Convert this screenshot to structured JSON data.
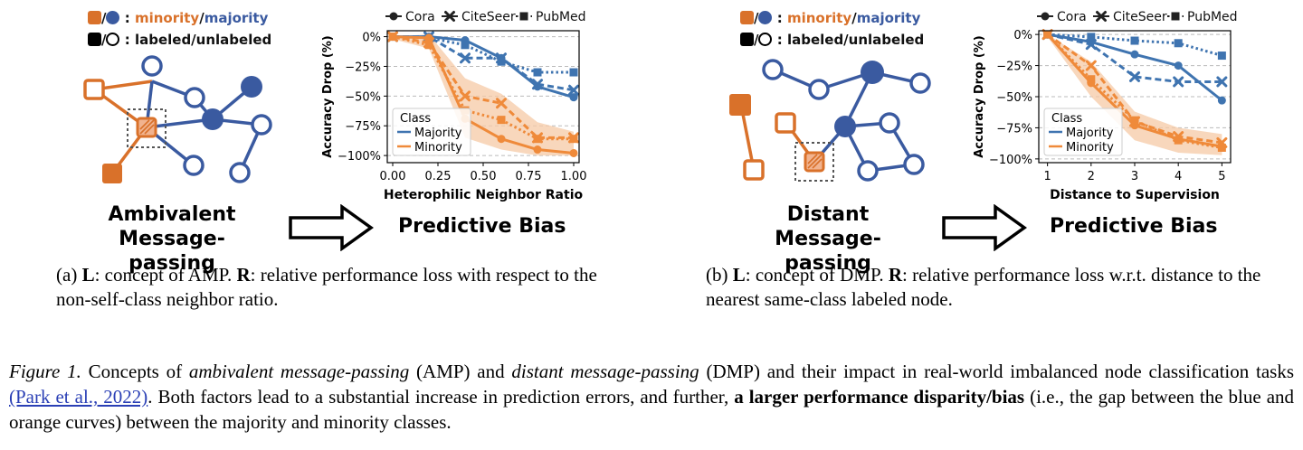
{
  "palette": {
    "orange": "#d9712a",
    "blue": "#3a5aa0",
    "majority_line": "#3f74b0",
    "minority_line": "#ef8a3a",
    "band": "#f6c9a6"
  },
  "left": {
    "legend": {
      "sep": "/",
      "colon": ":",
      "minority": "minority",
      "slash": "/",
      "majority": "majority",
      "labeled_unlabeled": "labeled/unlabeled"
    },
    "concept_title": [
      "Ambivalent",
      "Message-passing"
    ],
    "arrow_target": "Predictive Bias",
    "subcaption": {
      "prefix": "(a) ",
      "L": "L",
      ":": ":",
      "l_text": " concept of AMP. ",
      "R": "R",
      "r_text": ": relative performance loss with respect to the non-self-class neighbor ratio."
    }
  },
  "right": {
    "legend": {
      "sep": "/",
      "colon": ":",
      "minority": "minority",
      "slash": "/",
      "majority": "majority",
      "labeled_unlabeled": "labeled/unlabeled"
    },
    "concept_title": [
      "Distant",
      "Message-passing"
    ],
    "arrow_target": "Predictive Bias",
    "subcaption": {
      "prefix": "(b) ",
      "L": "L",
      "l_text": ": concept of DMP. ",
      "R": "R",
      "r_text": ": relative performance loss w.r.t. distance to the nearest same-class labeled node."
    }
  },
  "caption": {
    "label": "Figure 1.",
    "t1": " Concepts of ",
    "amp": "ambivalent message-passing",
    "t2": " (AMP) and ",
    "dmp": "distant message-passing",
    "t3": " (DMP) and their impact in real-world imbalanced node classification tasks ",
    "cite": "(Park et al., 2022)",
    "t4": ". Both factors lead to a substantial increase in prediction errors, and further, ",
    "bold": "a larger performance disparity/bias",
    "t5": " (i.e., the gap between the blue and orange curves) between the majority and minority classes."
  },
  "chart_data": [
    {
      "type": "line",
      "title": "",
      "xlabel": "Heterophilic Neighbor Ratio",
      "ylabel": "Accuracy Drop (%)",
      "xlim": [
        -0.03,
        1.03
      ],
      "ylim": [
        -106,
        5
      ],
      "xticks": [
        0.0,
        0.25,
        0.5,
        0.75,
        1.0
      ],
      "xtick_labels": [
        "0.00",
        "0.25",
        "0.50",
        "0.75",
        "1.00"
      ],
      "yticks": [
        0,
        -25,
        -50,
        -75,
        -100
      ],
      "ytick_labels": [
        "0%",
        "−25%",
        "−50%",
        "−75%",
        "−100%"
      ],
      "grid": "horizontal-dashed",
      "top_legend": [
        "Cora",
        "CiteSeer",
        "PubMed"
      ],
      "class_legend": {
        "title": "Class",
        "items": [
          "Majority",
          "Minority"
        ],
        "placement": "lower-left"
      },
      "x": [
        0.0,
        0.2,
        0.4,
        0.6,
        0.8,
        1.0
      ],
      "band": {
        "x": [
          0.0,
          0.2,
          0.4,
          0.6,
          0.8,
          1.0
        ],
        "upper": [
          0,
          2,
          -35,
          -48,
          -72,
          -80
        ],
        "lower": [
          -2,
          -10,
          -85,
          -95,
          -100,
          -100
        ]
      },
      "series": [
        {
          "name": "Cora",
          "class": "Majority",
          "marker": "circle",
          "dash": "solid",
          "values": [
            0,
            0,
            -3,
            -18,
            -42,
            -51
          ]
        },
        {
          "name": "CiteSeer",
          "class": "Majority",
          "marker": "x",
          "dash": "dashed",
          "values": [
            0,
            0,
            -18,
            -18,
            -40,
            -45
          ]
        },
        {
          "name": "PubMed",
          "class": "Majority",
          "marker": "square",
          "dash": "dotted",
          "values": [
            0,
            -1,
            -7,
            -21,
            -30,
            -30
          ]
        },
        {
          "name": "Cora",
          "class": "Minority",
          "marker": "circle",
          "dash": "solid",
          "values": [
            0,
            -1,
            -69,
            -86,
            -95,
            -98
          ]
        },
        {
          "name": "CiteSeer",
          "class": "Minority",
          "marker": "x",
          "dash": "dashed",
          "values": [
            0,
            -5,
            -50,
            -56,
            -85,
            -85
          ]
        },
        {
          "name": "PubMed",
          "class": "Minority",
          "marker": "square",
          "dash": "dotted",
          "values": [
            0,
            -7,
            -62,
            -70,
            -86,
            -86
          ]
        }
      ]
    },
    {
      "type": "line",
      "title": "",
      "xlabel": "Distance to Supervision",
      "ylabel": "Accuracy Drop (%)",
      "xlim": [
        0.8,
        5.2
      ],
      "ylim": [
        -103,
        3
      ],
      "xticks": [
        1,
        2,
        3,
        4,
        5
      ],
      "xtick_labels": [
        "1",
        "2",
        "3",
        "4",
        "5"
      ],
      "yticks": [
        0,
        -25,
        -50,
        -75,
        -100
      ],
      "ytick_labels": [
        "0%",
        "−25%",
        "−50%",
        "−75%",
        "−100%"
      ],
      "grid": "horizontal-dashed",
      "top_legend": [
        "Cora",
        "CiteSeer",
        "PubMed"
      ],
      "class_legend": {
        "title": "Class",
        "items": [
          "Majority",
          "Minority"
        ],
        "placement": "lower-left"
      },
      "x": [
        1,
        2,
        3,
        4,
        5
      ],
      "band": {
        "x": [
          1,
          2,
          3,
          4,
          5
        ],
        "upper": [
          0,
          -22,
          -62,
          -75,
          -80
        ],
        "lower": [
          -2,
          -50,
          -85,
          -95,
          -97
        ]
      },
      "series": [
        {
          "name": "Cora",
          "class": "Majority",
          "marker": "circle",
          "dash": "solid",
          "values": [
            0,
            -6,
            -16,
            -25,
            -53
          ]
        },
        {
          "name": "CiteSeer",
          "class": "Majority",
          "marker": "x",
          "dash": "dashed",
          "values": [
            0,
            -8,
            -34,
            -38,
            -38
          ]
        },
        {
          "name": "PubMed",
          "class": "Majority",
          "marker": "square",
          "dash": "dotted",
          "values": [
            0,
            -2,
            -5,
            -7,
            -17
          ]
        },
        {
          "name": "Cora",
          "class": "Minority",
          "marker": "circle",
          "dash": "solid",
          "values": [
            0,
            -39,
            -73,
            -84,
            -90
          ]
        },
        {
          "name": "CiteSeer",
          "class": "Minority",
          "marker": "x",
          "dash": "dashed",
          "values": [
            0,
            -25,
            -70,
            -82,
            -87
          ]
        },
        {
          "name": "PubMed",
          "class": "Minority",
          "marker": "square",
          "dash": "dotted",
          "values": [
            0,
            -36,
            -69,
            -85,
            -91
          ]
        }
      ]
    }
  ]
}
